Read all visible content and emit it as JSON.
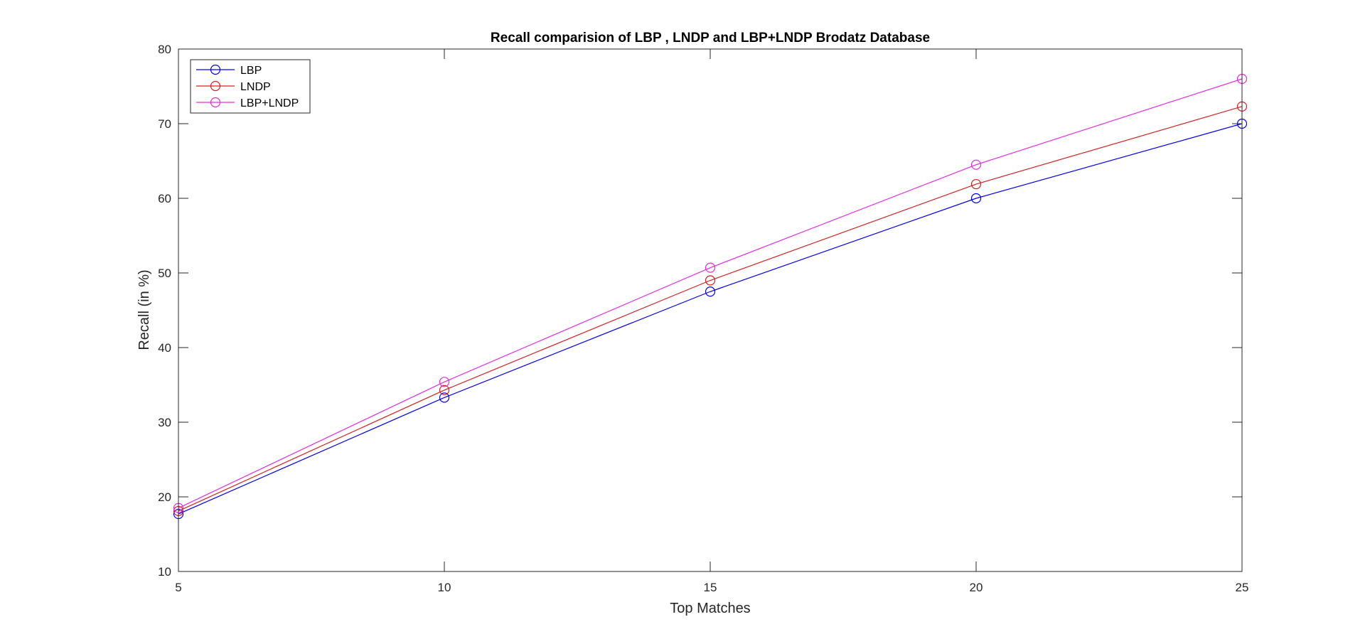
{
  "chart_data": {
    "type": "line",
    "title": "Recall comparision of LBP , LNDP and LBP+LNDP Brodatz Database",
    "xlabel": "Top Matches",
    "ylabel": "Recall (in %)",
    "x": [
      5,
      10,
      15,
      20,
      25
    ],
    "xlim": [
      5,
      25
    ],
    "ylim": [
      10,
      80
    ],
    "xticks": [
      "5",
      "10",
      "15",
      "20",
      "25"
    ],
    "yticks": [
      "10",
      "20",
      "30",
      "40",
      "50",
      "60",
      "70",
      "80"
    ],
    "grid": false,
    "legend_position": "top-left",
    "marker": "circle",
    "series": [
      {
        "name": "LBP",
        "color": "#0000ff",
        "values": [
          17.7,
          33.3,
          47.5,
          60.0,
          70.0
        ]
      },
      {
        "name": "LNDP",
        "color": "#d62020",
        "values": [
          18.1,
          34.3,
          49.0,
          61.9,
          72.3
        ]
      },
      {
        "name": "LBP+LNDP",
        "color": "#e32de3",
        "values": [
          18.5,
          35.4,
          50.7,
          64.5,
          76.0
        ]
      }
    ]
  }
}
